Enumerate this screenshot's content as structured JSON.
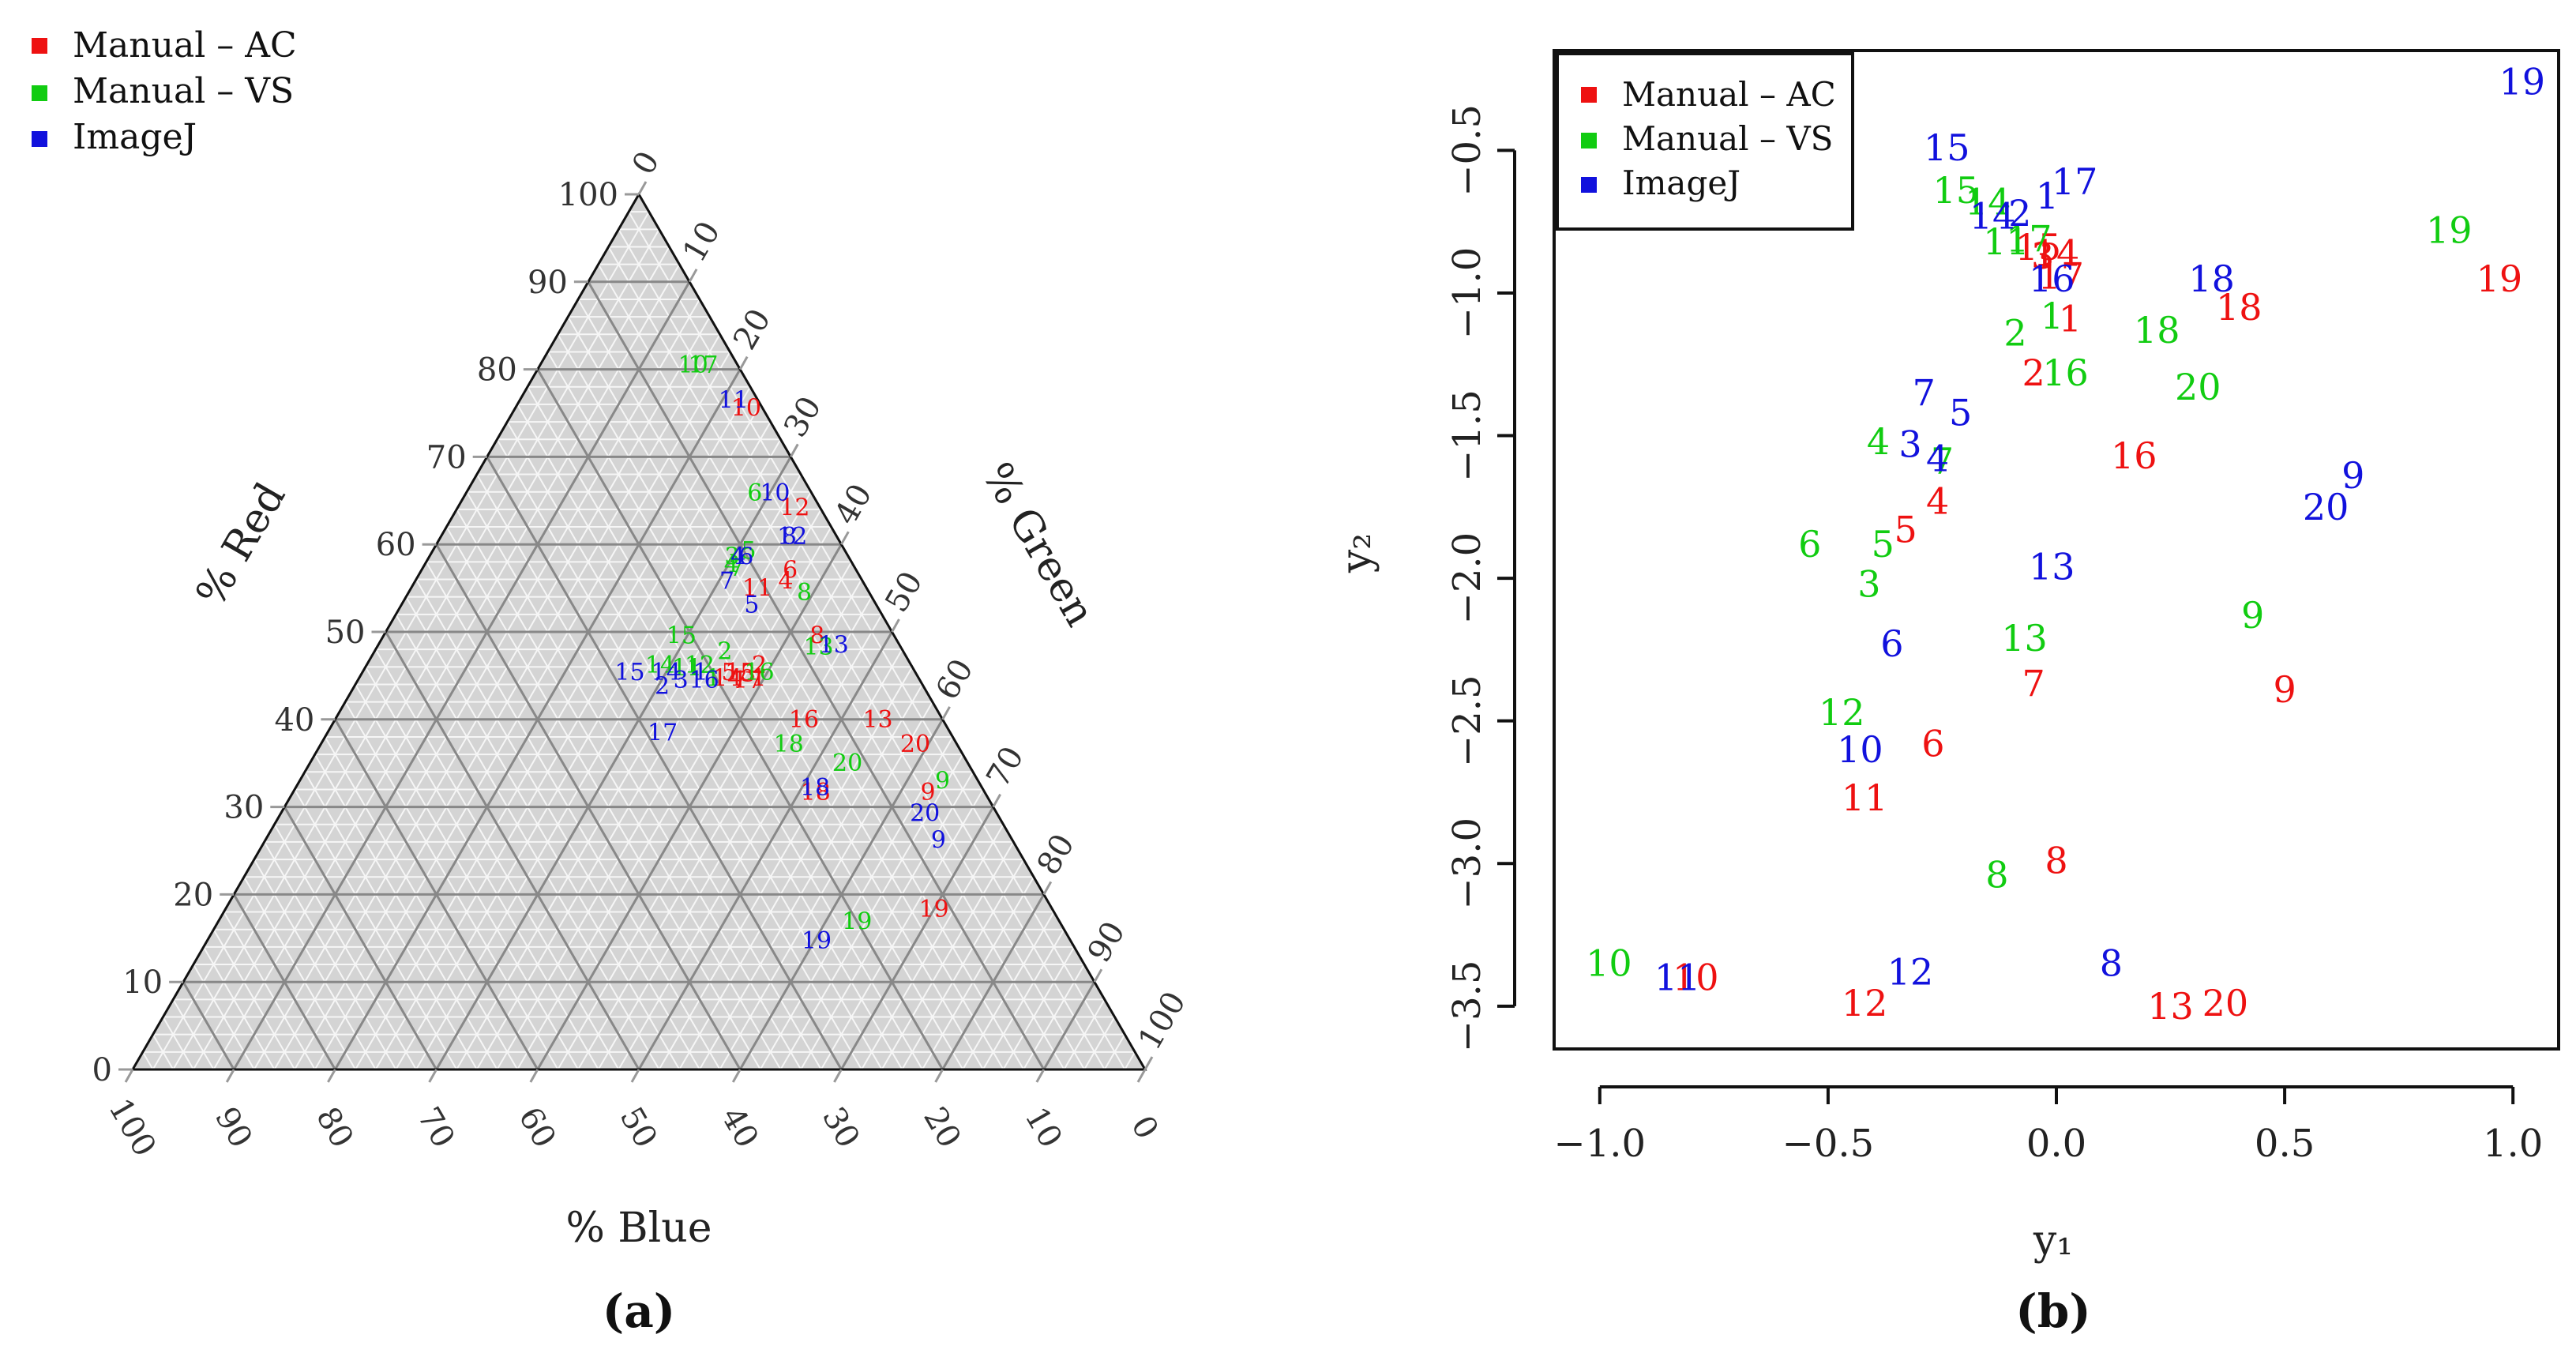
{
  "colors": {
    "ac": "#ee1111",
    "vs": "#11cc11",
    "ij": "#1111dd"
  },
  "legend": [
    "Manual – AC",
    "Manual – VS",
    "ImageJ"
  ],
  "panel_labels": {
    "a": "(a)",
    "b": "(b)"
  },
  "chart_data": [
    {
      "type": "scatter",
      "subtype": "ternary",
      "axis_labels": {
        "red": "% Red",
        "green": "% Green",
        "blue": "% Blue"
      },
      "ticks": [
        0,
        10,
        20,
        30,
        40,
        50,
        60,
        70,
        80,
        90,
        100
      ],
      "series": [
        {
          "name": "Manual – AC",
          "points": [
            {
              "label": "1",
              "r": 44.7,
              "g": 39.5
            },
            {
              "label": "2",
              "r": 46.2,
              "g": 38.8
            },
            {
              "label": "3",
              "r": 45.2,
              "g": 38.2
            },
            {
              "label": "4",
              "r": 55.8,
              "g": 36.6
            },
            {
              "label": "5",
              "r": 45.4,
              "g": 36.2
            },
            {
              "label": "6",
              "r": 57.1,
              "g": 36.4
            },
            {
              "label": "7",
              "r": 44.5,
              "g": 37.7
            },
            {
              "label": "8",
              "r": 49.6,
              "g": 42.8
            },
            {
              "label": "9",
              "r": 31.7,
              "g": 62.7
            },
            {
              "label": "10",
              "r": 75.6,
              "g": 22.8
            },
            {
              "label": "11",
              "r": 55.0,
              "g": 34.2
            },
            {
              "label": "12",
              "r": 64.2,
              "g": 33.3
            },
            {
              "label": "13",
              "r": 40.0,
              "g": 53.6
            },
            {
              "label": "14",
              "r": 44.7,
              "g": 36.4
            },
            {
              "label": "15",
              "r": 45.4,
              "g": 37.3
            },
            {
              "label": "16",
              "r": 40.0,
              "g": 46.3
            },
            {
              "label": "17",
              "r": 44.5,
              "g": 38.5
            },
            {
              "label": "18",
              "r": 31.7,
              "g": 51.6
            },
            {
              "label": "19",
              "r": 18.3,
              "g": 70.0
            },
            {
              "label": "20",
              "r": 37.2,
              "g": 58.7
            }
          ]
        },
        {
          "name": "Manual – VS",
          "points": [
            {
              "label": "1",
              "r": 44.7,
              "g": 35.0
            },
            {
              "label": "2",
              "r": 47.8,
              "g": 34.6
            },
            {
              "label": "3",
              "r": 58.6,
              "g": 29.9
            },
            {
              "label": "4",
              "r": 57.7,
              "g": 30.3
            },
            {
              "label": "5",
              "r": 59.3,
              "g": 31.2
            },
            {
              "label": "6",
              "r": 65.9,
              "g": 28.5
            },
            {
              "label": "7",
              "r": 57.3,
              "g": 31.0
            },
            {
              "label": "8",
              "r": 54.5,
              "g": 39.1
            },
            {
              "label": "9",
              "r": 33.0,
              "g": 63.5
            },
            {
              "label": "10",
              "r": 80.5,
              "g": 15.1
            },
            {
              "label": "11",
              "r": 45.9,
              "g": 31.8
            },
            {
              "label": "12",
              "r": 46.2,
              "g": 32.9
            },
            {
              "label": "13",
              "r": 48.3,
              "g": 43.6
            },
            {
              "label": "14",
              "r": 46.2,
              "g": 29.0
            },
            {
              "label": "15",
              "r": 49.6,
              "g": 29.4
            },
            {
              "label": "16",
              "r": 45.4,
              "g": 39.2
            },
            {
              "label": "17",
              "r": 80.5,
              "g": 16.1
            },
            {
              "label": "18",
              "r": 37.2,
              "g": 46.2
            },
            {
              "label": "19",
              "r": 16.9,
              "g": 63.1
            },
            {
              "label": "20",
              "r": 35.0,
              "g": 53.1
            }
          ]
        },
        {
          "name": "ImageJ",
          "points": [
            {
              "label": "1",
              "r": 45.4,
              "g": 33.4
            },
            {
              "label": "2",
              "r": 43.8,
              "g": 30.4
            },
            {
              "label": "3",
              "r": 44.5,
              "g": 31.9
            },
            {
              "label": "4",
              "r": 58.6,
              "g": 30.5
            },
            {
              "label": "5",
              "r": 53.1,
              "g": 34.6
            },
            {
              "label": "6",
              "r": 58.6,
              "g": 31.3
            },
            {
              "label": "7",
              "r": 55.8,
              "g": 30.8
            },
            {
              "label": "8",
              "r": 60.9,
              "g": 34.4
            },
            {
              "label": "9",
              "r": 26.2,
              "g": 66.5
            },
            {
              "label": "10",
              "r": 65.9,
              "g": 30.5
            },
            {
              "label": "11",
              "r": 76.5,
              "g": 21.1
            },
            {
              "label": "12",
              "r": 60.9,
              "g": 34.7
            },
            {
              "label": "13",
              "r": 48.5,
              "g": 45.0
            },
            {
              "label": "14",
              "r": 45.4,
              "g": 30.0
            },
            {
              "label": "15",
              "r": 45.4,
              "g": 26.4
            },
            {
              "label": "16",
              "r": 44.5,
              "g": 34.2
            },
            {
              "label": "17",
              "r": 38.5,
              "g": 33.1
            },
            {
              "label": "18",
              "r": 32.2,
              "g": 51.3
            },
            {
              "label": "19",
              "r": 14.7,
              "g": 60.2
            },
            {
              "label": "20",
              "r": 29.3,
              "g": 63.6
            }
          ]
        }
      ]
    },
    {
      "type": "scatter",
      "xlabel": "y₁",
      "ylabel": "y₂",
      "xlim": [
        -1.1,
        1.1
      ],
      "ylim": [
        -3.65,
        -0.15
      ],
      "xticks": [
        -1.0,
        -0.5,
        0.0,
        0.5,
        1.0
      ],
      "xtick_labels": [
        "−1.0",
        "−0.5",
        "0.0",
        "0.5",
        "1.0"
      ],
      "yticks": [
        -0.5,
        -1.0,
        -1.5,
        -2.0,
        -2.5,
        -3.0,
        -3.5
      ],
      "ytick_labels": [
        "−0.5",
        "−1.0",
        "−1.5",
        "−2.0",
        "−2.5",
        "−3.0",
        "−3.5"
      ],
      "legend": "top-left",
      "series": [
        {
          "name": "Manual – AC",
          "points": [
            {
              "label": "1",
              "x": 0.03,
              "y": -1.09
            },
            {
              "label": "2",
              "x": -0.05,
              "y": -1.28
            },
            {
              "label": "3",
              "x": -0.03,
              "y": -0.87
            },
            {
              "label": "4",
              "x": -0.26,
              "y": -1.73
            },
            {
              "label": "5",
              "x": -0.33,
              "y": -1.83
            },
            {
              "label": "6",
              "x": -0.27,
              "y": -2.58
            },
            {
              "label": "7",
              "x": -0.05,
              "y": -2.37
            },
            {
              "label": "8",
              "x": 0.0,
              "y": -2.99
            },
            {
              "label": "9",
              "x": 0.5,
              "y": -2.39
            },
            {
              "label": "10",
              "x": -0.79,
              "y": -3.4
            },
            {
              "label": "11",
              "x": -0.42,
              "y": -2.77
            },
            {
              "label": "12",
              "x": -0.42,
              "y": -3.49
            },
            {
              "label": "13",
              "x": 0.25,
              "y": -3.5
            },
            {
              "label": "14",
              "x": 0.0,
              "y": -0.86
            },
            {
              "label": "15",
              "x": -0.04,
              "y": -0.84
            },
            {
              "label": "16",
              "x": 0.17,
              "y": -1.57
            },
            {
              "label": "17",
              "x": 0.01,
              "y": -0.94
            },
            {
              "label": "18",
              "x": 0.4,
              "y": -1.05
            },
            {
              "label": "19",
              "x": 0.97,
              "y": -0.95
            },
            {
              "label": "20",
              "x": 0.37,
              "y": -3.49
            }
          ]
        },
        {
          "name": "Manual – VS",
          "points": [
            {
              "label": "1",
              "x": -0.01,
              "y": -1.08
            },
            {
              "label": "2",
              "x": -0.09,
              "y": -1.14
            },
            {
              "label": "3",
              "x": -0.41,
              "y": -2.02
            },
            {
              "label": "4",
              "x": -0.39,
              "y": -1.52
            },
            {
              "label": "5",
              "x": -0.38,
              "y": -1.88
            },
            {
              "label": "6",
              "x": -0.54,
              "y": -1.88
            },
            {
              "label": "7",
              "x": -0.25,
              "y": -1.59
            },
            {
              "label": "8",
              "x": -0.13,
              "y": -3.04
            },
            {
              "label": "9",
              "x": 0.43,
              "y": -2.13
            },
            {
              "label": "10",
              "x": -0.98,
              "y": -3.35
            },
            {
              "label": "11",
              "x": -0.11,
              "y": -0.82
            },
            {
              "label": "12",
              "x": -0.47,
              "y": -2.47
            },
            {
              "label": "13",
              "x": -0.07,
              "y": -2.21
            },
            {
              "label": "14",
              "x": -0.15,
              "y": -0.68
            },
            {
              "label": "15",
              "x": -0.22,
              "y": -0.64
            },
            {
              "label": "16",
              "x": 0.02,
              "y": -1.28
            },
            {
              "label": "17",
              "x": -0.06,
              "y": -0.81
            },
            {
              "label": "18",
              "x": 0.22,
              "y": -1.13
            },
            {
              "label": "19",
              "x": 0.86,
              "y": -0.78
            },
            {
              "label": "20",
              "x": 0.31,
              "y": -1.33
            }
          ]
        },
        {
          "name": "ImageJ",
          "points": [
            {
              "label": "1",
              "x": -0.02,
              "y": -0.66
            },
            {
              "label": "2",
              "x": -0.08,
              "y": -0.72
            },
            {
              "label": "3",
              "x": -0.32,
              "y": -1.53
            },
            {
              "label": "4",
              "x": -0.26,
              "y": -1.58
            },
            {
              "label": "5",
              "x": -0.21,
              "y": -1.42
            },
            {
              "label": "6",
              "x": -0.36,
              "y": -2.23
            },
            {
              "label": "7",
              "x": -0.29,
              "y": -1.35
            },
            {
              "label": "8",
              "x": 0.12,
              "y": -3.35
            },
            {
              "label": "9",
              "x": 0.65,
              "y": -1.64
            },
            {
              "label": "10",
              "x": -0.43,
              "y": -2.6
            },
            {
              "label": "11",
              "x": -0.83,
              "y": -3.4
            },
            {
              "label": "12",
              "x": -0.32,
              "y": -3.38
            },
            {
              "label": "13",
              "x": -0.01,
              "y": -1.96
            },
            {
              "label": "14",
              "x": -0.14,
              "y": -0.73
            },
            {
              "label": "15",
              "x": -0.24,
              "y": -0.49
            },
            {
              "label": "16",
              "x": -0.01,
              "y": -0.95
            },
            {
              "label": "17",
              "x": 0.04,
              "y": -0.61
            },
            {
              "label": "18",
              "x": 0.34,
              "y": -0.95
            },
            {
              "label": "19",
              "x": 1.02,
              "y": -0.26
            },
            {
              "label": "20",
              "x": 0.59,
              "y": -1.75
            }
          ]
        }
      ]
    }
  ]
}
